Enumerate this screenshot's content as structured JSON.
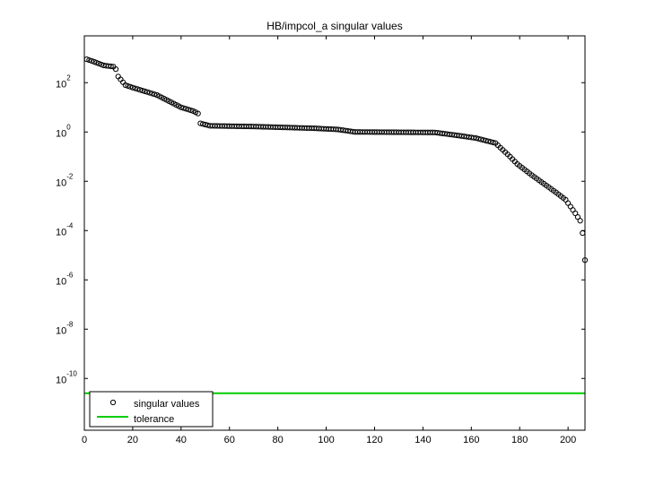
{
  "chart_data": {
    "type": "scatter",
    "title": "HB/impcol_a singular values",
    "xlabel": "",
    "ylabel": "",
    "xlim": [
      0,
      207
    ],
    "ylim": [
      -12.1,
      3.9
    ],
    "y_scale": "log10",
    "x_ticks": [
      "0",
      "20",
      "40",
      "60",
      "80",
      "100",
      "120",
      "140",
      "160",
      "180",
      "200"
    ],
    "y_ticks": [
      {
        "base": "10",
        "exp": "2"
      },
      {
        "base": "10",
        "exp": "0"
      },
      {
        "base": "10",
        "exp": "-2"
      },
      {
        "base": "10",
        "exp": "-4"
      },
      {
        "base": "10",
        "exp": "-6"
      },
      {
        "base": "10",
        "exp": "-8"
      },
      {
        "base": "10",
        "exp": "-10"
      }
    ],
    "grid": false,
    "legend_position": "bottom-left",
    "series": [
      {
        "name": "singular values",
        "marker": "circle",
        "color": "#000000",
        "anchors_log10": [
          [
            1,
            2.95
          ],
          [
            4,
            2.85
          ],
          [
            8,
            2.7
          ],
          [
            12,
            2.65
          ],
          [
            13,
            2.55
          ],
          [
            14,
            2.25
          ],
          [
            17,
            1.9
          ],
          [
            20,
            1.8
          ],
          [
            25,
            1.65
          ],
          [
            30,
            1.5
          ],
          [
            36,
            1.2
          ],
          [
            40,
            1.0
          ],
          [
            45,
            0.85
          ],
          [
            47,
            0.75
          ],
          [
            48,
            0.35
          ],
          [
            52,
            0.25
          ],
          [
            70,
            0.22
          ],
          [
            95,
            0.15
          ],
          [
            105,
            0.1
          ],
          [
            112,
            0.0
          ],
          [
            145,
            -0.02
          ],
          [
            155,
            -0.15
          ],
          [
            162,
            -0.25
          ],
          [
            170,
            -0.45
          ],
          [
            176,
            -1.0
          ],
          [
            179,
            -1.3
          ],
          [
            185,
            -1.75
          ],
          [
            190,
            -2.1
          ],
          [
            195,
            -2.45
          ],
          [
            199,
            -2.75
          ],
          [
            203,
            -3.3
          ],
          [
            205,
            -3.6
          ],
          [
            206,
            -4.1
          ],
          [
            207,
            -5.2
          ]
        ]
      },
      {
        "name": "tolerance",
        "color": "#00cc00",
        "value_log10": -10.6
      }
    ]
  }
}
